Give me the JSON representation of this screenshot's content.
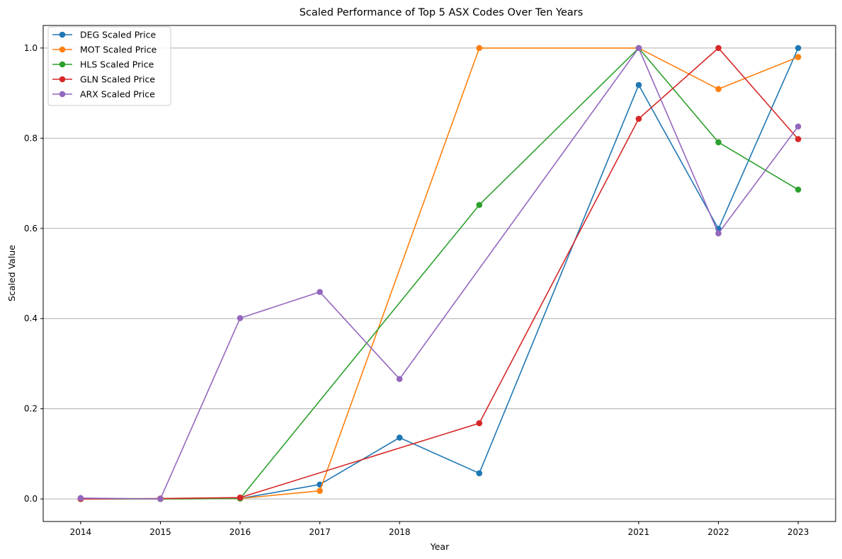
{
  "chart_data": {
    "type": "line",
    "title": "Scaled Performance of Top 5 ASX Codes Over Ten Years",
    "xlabel": "Year",
    "ylabel": "Scaled Value",
    "xticks": [
      2014,
      2015,
      2016,
      2017,
      2018,
      2021,
      2022,
      2023
    ],
    "yticks": [
      "0.0",
      "0.2",
      "0.4",
      "0.6",
      "0.8",
      "1.0"
    ],
    "xlim": [
      2013.53,
      2023.47
    ],
    "ylim": [
      -0.05,
      1.05
    ],
    "grid": "y-axis",
    "legend_position": "top-left",
    "x": [
      2014,
      2015,
      2016,
      2017,
      2018,
      2019,
      2021,
      2022,
      2023
    ],
    "series": [
      {
        "name": "DEG Scaled Price",
        "color": "#1f77b4",
        "points": [
          [
            2014,
            0.0
          ],
          [
            2015,
            0.0
          ],
          [
            2016,
            0.001
          ],
          [
            2017,
            0.032
          ],
          [
            2018,
            0.136
          ],
          [
            2019,
            0.057
          ],
          [
            2021,
            0.918
          ],
          [
            2022,
            0.599
          ],
          [
            2023,
            1.0
          ]
        ]
      },
      {
        "name": "MOT Scaled Price",
        "color": "#ff7f0e",
        "points": [
          [
            2014,
            0.0
          ],
          [
            2015,
            0.0
          ],
          [
            2016,
            0.001
          ],
          [
            2017,
            0.018
          ],
          [
            2019,
            1.0
          ],
          [
            2021,
            1.0
          ],
          [
            2022,
            0.909
          ],
          [
            2023,
            0.98
          ]
        ]
      },
      {
        "name": "HLS Scaled Price",
        "color": "#2ca02c",
        "points": [
          [
            2014,
            0.0
          ],
          [
            2015,
            0.0
          ],
          [
            2016,
            0.001
          ],
          [
            2019,
            0.652
          ],
          [
            2021,
            1.0
          ],
          [
            2022,
            0.791
          ],
          [
            2023,
            0.686
          ]
        ]
      },
      {
        "name": "GLN Scaled Price",
        "color": "#d62728",
        "points": [
          [
            2014,
            0.0
          ],
          [
            2015,
            0.001
          ],
          [
            2016,
            0.003
          ],
          [
            2019,
            0.168
          ],
          [
            2021,
            0.843
          ],
          [
            2022,
            1.0
          ],
          [
            2023,
            0.798
          ]
        ]
      },
      {
        "name": "ARX Scaled Price",
        "color": "#9467bd",
        "points": [
          [
            2014,
            0.002
          ],
          [
            2015,
            0.0
          ],
          [
            2016,
            0.401
          ],
          [
            2017,
            0.459
          ],
          [
            2018,
            0.266
          ],
          [
            2021,
            1.0
          ],
          [
            2022,
            0.589
          ],
          [
            2023,
            0.826
          ]
        ]
      }
    ]
  }
}
